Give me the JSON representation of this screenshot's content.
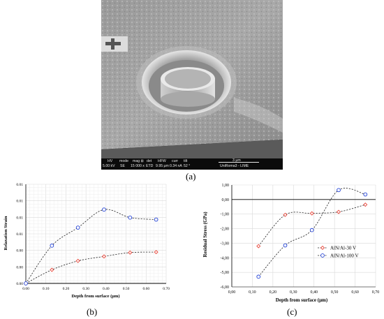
{
  "panel_labels": {
    "a": "(a)",
    "b": "(b)",
    "c": "(c)"
  },
  "sem": {
    "scale_bar": "3 μm",
    "columns": [
      {
        "header": "HV",
        "value": "5.00 kV"
      },
      {
        "header": "mode",
        "value": "SE"
      },
      {
        "header": "mag ⊞",
        "value": "15 000 x"
      },
      {
        "header": "det",
        "value": "ETD"
      },
      {
        "header": "HFW",
        "value": "9.95 μm"
      },
      {
        "header": "curr",
        "value": "0.34 nA"
      },
      {
        "header": "tilt",
        "value": "52 °"
      }
    ],
    "lab": "UniRoma3 - LIME"
  },
  "chart_data": [
    {
      "type": "scatter",
      "panel": "(b)",
      "xlabel": "Depth from surface (μm)",
      "ylabel": "Relaxation Strain",
      "xlim": [
        0,
        0.7
      ],
      "ylim": [
        0,
        1
      ],
      "xticks": [
        "0.00",
        "0.10",
        "0.20",
        "0.30",
        "0.40",
        "0.50",
        "0.60",
        "0.70"
      ],
      "yticks": [
        "0.00",
        "0.00",
        "0.00",
        "0.01",
        "0.01",
        "0.01",
        "0.01"
      ],
      "grid": true,
      "series": [
        {
          "color": "#e8463a",
          "marker": "diamond",
          "x": [
            0.0,
            0.13,
            0.26,
            0.39,
            0.52,
            0.65
          ],
          "y": [
            0.0,
            0.137,
            0.227,
            0.272,
            0.311,
            0.316
          ]
        },
        {
          "color": "#1f3fd6",
          "marker": "circle",
          "x": [
            0.0,
            0.13,
            0.26,
            0.39,
            0.52,
            0.65
          ],
          "y": [
            0.0,
            0.381,
            0.563,
            0.745,
            0.664,
            0.644
          ]
        }
      ]
    },
    {
      "type": "scatter",
      "panel": "(c)",
      "xlabel": "Depth from surface (μm)",
      "ylabel": "Residual Stress (GPa)",
      "xlim": [
        0,
        0.7
      ],
      "ylim": [
        -6,
        1
      ],
      "xticks": [
        "0,00",
        "0,10",
        "0,20",
        "0,30",
        "0,40",
        "0,50",
        "0,60",
        "0,70"
      ],
      "yticks": [
        "1,00",
        "0,00",
        "-1,00",
        "-2,00",
        "-3,00",
        "-4,00",
        "-5,00",
        "-6,00"
      ],
      "grid": true,
      "legend": "right",
      "series": [
        {
          "name": "AlN/Al-30 V",
          "color": "#e8463a",
          "marker": "diamond",
          "x": [
            0.13,
            0.26,
            0.39,
            0.52,
            0.65
          ],
          "y": [
            -3.2,
            -1.05,
            -0.95,
            -0.85,
            -0.35
          ]
        },
        {
          "name": "AlN/Al-100 V",
          "color": "#1f3fd6",
          "marker": "circle",
          "x": [
            0.13,
            0.26,
            0.39,
            0.52,
            0.65
          ],
          "y": [
            -5.3,
            -3.15,
            -2.1,
            0.65,
            0.35
          ]
        }
      ]
    }
  ]
}
